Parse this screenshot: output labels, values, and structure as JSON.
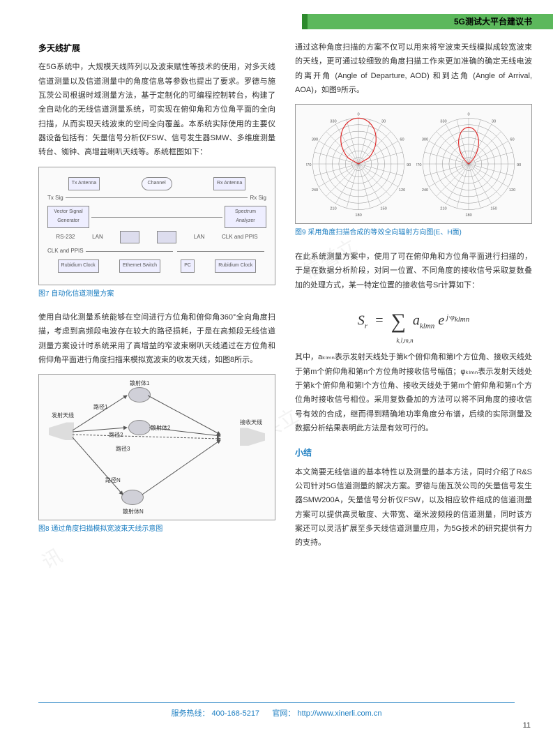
{
  "header": {
    "title": "5G测试大平台建议书"
  },
  "left": {
    "section_title": "多天线扩展",
    "p1": "在5G系统中，大规模天线阵列以及波束赋性等技术的使用，对多天线信道测量以及信道测量中的角度信息等参数也提出了要求。罗德与施瓦茨公司根据时域测量方法，基于定制化的可编程控制转台，构建了全自动化的无线信道测量系统，可实现在俯仰角和方位角平面的全向扫描，从而实现天线波束的空间全向覆盖。本系统实际使用的主要仪器设备包括有：矢量信号分析仪FSW、信号发生器SMW、多维度测量转台、铷钟、高增益喇叭天线等。系统框图如下：",
    "fig7": {
      "caption": "图7 自动化信道测量方案",
      "labels": {
        "tx_ant": "Tx Antenna",
        "rx_ant": "Rx Antenna",
        "channel": "Channel",
        "tx_sig": "Tx Sig",
        "rx_sig": "Rx Sig",
        "vsg": "Vector Signal Generator",
        "sa": "Spectrum Analyzer",
        "rs232": "RS-232",
        "lan": "LAN",
        "clk": "CLK and PPIS",
        "rub": "Rubidium Clock",
        "esw": "Ethernet Switch",
        "pc": "PC"
      }
    },
    "p2": "使用自动化测量系统能够在空间进行方位角和俯仰角360°全向角度扫描，考虑到高频段电波存在较大的路径损耗，于是在高频段无线信道测量方案设计时系统采用了高增益的窄波束喇叭天线通过在方位角和俯仰角平面进行角度扫描来模拟宽波束的收发天线，如图8所示。",
    "fig8": {
      "caption": "图8 通过角度扫描模拟宽波束天线示意图",
      "labels": {
        "tx": "发射天线",
        "rx": "接收天线",
        "s1": "散射体1",
        "s2": "散射体2",
        "sn": "散射体N",
        "p1": "路径1",
        "p2": "路径2",
        "p3": "路径3",
        "pn": "路径N"
      }
    }
  },
  "right": {
    "p1": "通过这种角度扫描的方案不仅可以用来将窄波束天线模拟成较宽波束的天线，更可通过较细致的角度扫描工作来更加准确的确定无线电波的离开角 (Angle of Departure, AOD) 和到达角 (Angle of Arrival, AOA)，如图9所示。",
    "fig9": {
      "caption": "图9 采用角度扫描合成的等效全向辐射方向图(E、H面)"
    },
    "p2": "在此系统测量方案中，使用了可在俯仰角和方位角平面进行扫描的，于是在数据分析阶段，对同一位置、不同角度的接收信号采取复数叠加的处理方式，某一特定位置的接收信号Sr计算如下：",
    "p3": "其中，aₖₗₘₙ表示发射天线处于第k个俯仰角和第l个方位角、接收天线处于第m个俯仰角和第n个方位角时接收信号幅值；φₖₗₘₙ表示发射天线处于第k个俯仰角和第l个方位角、接收天线处于第m个俯仰角和第n个方位角时接收信号相位。采用复数叠加的方法可以将不同角度的接收信号有效的合成，继而得到精确地功率角度分布谱，后续的实际测量及数据分析结果表明此方法是有效可行的。",
    "summary_title": "小结",
    "summary": "本文简要无线信道的基本特性以及测量的基本方法，同时介绍了R&S公司针对5G信道测量的解决方案。罗德与施瓦茨公司的矢量信号发生器SMW200A，矢量信号分析仪FSW，以及相应软件组成的信道测量方案可以提供高灵敏度、大带宽、毫米波频段的信道测量，同时该方案还可以灵活扩展至多天线信道测量应用，为5G技术的研究提供有力的支持。"
  },
  "footer": {
    "hotline_label": "服务热线：",
    "hotline": "400-168-5217",
    "site_label": "官网：",
    "site": "http://www.xinerli.com.cn"
  },
  "page_number": "11",
  "polar": {
    "ticks": [
      0,
      15,
      30,
      45,
      60,
      75,
      90,
      105,
      120,
      135,
      150,
      165,
      180,
      195,
      210,
      225,
      240,
      255,
      270,
      285,
      300,
      315,
      330,
      345
    ],
    "radii": [
      5,
      10,
      15,
      20,
      25,
      30,
      35
    ]
  }
}
